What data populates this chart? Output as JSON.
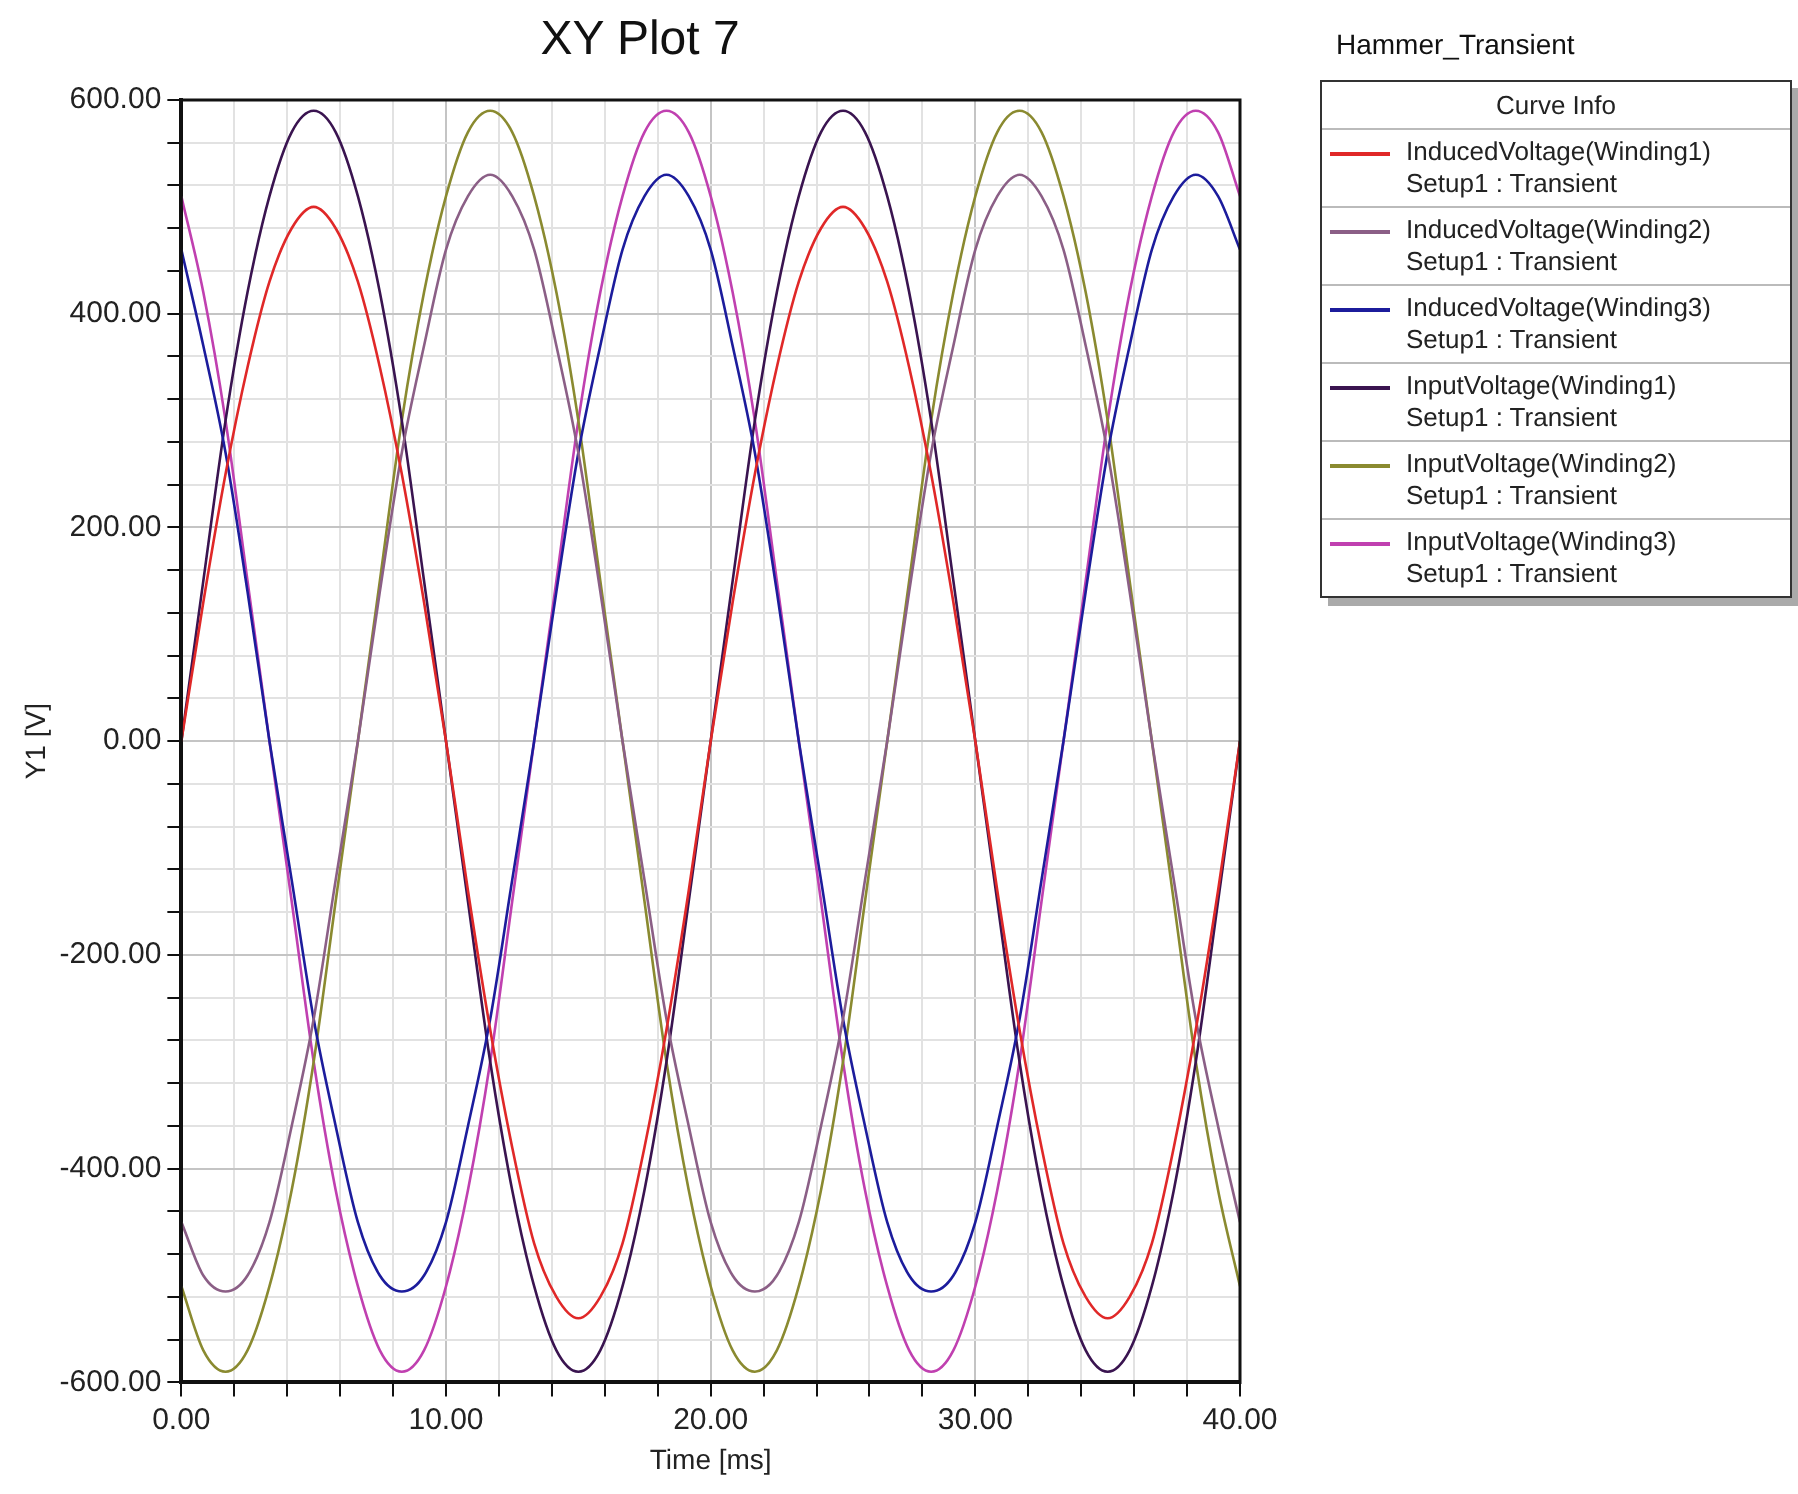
{
  "chart_data": {
    "type": "line",
    "title": "XY Plot 7",
    "subtitle": "Hammer_Transient",
    "xlabel": "Time [ms]",
    "ylabel": "Y1 [V]",
    "legend_title": "Curve Info",
    "legend": "top right",
    "grid": true,
    "marker": "none",
    "line_style": "solid",
    "xlim": [
      0,
      40
    ],
    "ylim": [
      -600,
      600
    ],
    "xticks": [
      {
        "value": 0,
        "label": "0.00"
      },
      {
        "value": 2,
        "label": null
      },
      {
        "value": 4,
        "label": null
      },
      {
        "value": 6,
        "label": null
      },
      {
        "value": 8,
        "label": null
      },
      {
        "value": 10,
        "label": "10.00"
      },
      {
        "value": 12,
        "label": null
      },
      {
        "value": 14,
        "label": null
      },
      {
        "value": 16,
        "label": null
      },
      {
        "value": 18,
        "label": null
      },
      {
        "value": 20,
        "label": "20.00"
      },
      {
        "value": 22,
        "label": null
      },
      {
        "value": 24,
        "label": null
      },
      {
        "value": 26,
        "label": null
      },
      {
        "value": 28,
        "label": null
      },
      {
        "value": 30,
        "label": "30.00"
      },
      {
        "value": 32,
        "label": null
      },
      {
        "value": 34,
        "label": null
      },
      {
        "value": 36,
        "label": null
      },
      {
        "value": 38,
        "label": null
      },
      {
        "value": 40,
        "label": "40.00"
      }
    ],
    "yticks": [
      {
        "value": -600,
        "label": "-600.00"
      },
      {
        "value": -560,
        "label": null
      },
      {
        "value": -520,
        "label": null
      },
      {
        "value": -480,
        "label": null
      },
      {
        "value": -440,
        "label": null
      },
      {
        "value": -400,
        "label": "-400.00"
      },
      {
        "value": -360,
        "label": null
      },
      {
        "value": -320,
        "label": null
      },
      {
        "value": -280,
        "label": null
      },
      {
        "value": -240,
        "label": null
      },
      {
        "value": -200,
        "label": "-200.00"
      },
      {
        "value": -160,
        "label": null
      },
      {
        "value": -120,
        "label": null
      },
      {
        "value": -80,
        "label": null
      },
      {
        "value": -40,
        "label": null
      },
      {
        "value": 0,
        "label": "0.00"
      },
      {
        "value": 40,
        "label": null
      },
      {
        "value": 80,
        "label": null
      },
      {
        "value": 120,
        "label": null
      },
      {
        "value": 160,
        "label": null
      },
      {
        "value": 200,
        "label": "200.00"
      },
      {
        "value": 240,
        "label": null
      },
      {
        "value": 280,
        "label": null
      },
      {
        "value": 320,
        "label": null
      },
      {
        "value": 360,
        "label": null
      },
      {
        "value": 400,
        "label": "400.00"
      },
      {
        "value": 440,
        "label": null
      },
      {
        "value": 480,
        "label": null
      },
      {
        "value": 520,
        "label": null
      },
      {
        "value": 560,
        "label": null
      },
      {
        "value": 600,
        "label": "600.00"
      }
    ],
    "x": [
      0,
      0.83,
      1.67,
      2.5,
      3.33,
      4.17,
      5,
      5.83,
      6.67,
      7.5,
      8.33,
      9.17,
      10,
      10.83,
      11.67,
      12.5,
      13.33,
      14.17,
      15,
      15.83,
      16.67,
      17.5,
      18.33,
      19.17,
      20,
      20.83,
      21.67,
      22.5,
      23.33,
      24.17,
      25,
      25.83,
      26.67,
      27.5,
      28.33,
      29.17,
      30,
      30.83,
      31.67,
      32.5,
      33.33,
      34.17,
      35,
      35.83,
      36.67,
      37.5,
      38.33,
      39.17,
      40
    ],
    "series": [
      {
        "name": "InducedVoltage(Winding1)\nSetup1 : Transient",
        "color": "#e02828",
        "values": [
          0,
          130,
          250,
          350,
          430,
          480,
          500,
          480,
          430,
          350,
          250,
          130,
          0,
          -140,
          -270,
          -380,
          -470,
          -520,
          -540,
          -520,
          -470,
          -380,
          -270,
          -140,
          0,
          130,
          250,
          350,
          430,
          480,
          500,
          480,
          430,
          350,
          250,
          130,
          0,
          -140,
          -270,
          -380,
          -470,
          -520,
          -540,
          -520,
          -470,
          -380,
          -270,
          -140,
          0
        ]
      },
      {
        "name": "InducedVoltage(Winding2)\nSetup1 : Transient",
        "color": "#8b5f86",
        "values": [
          -450,
          -500,
          -515,
          -500,
          -450,
          -360,
          -260,
          -130,
          0,
          140,
          270,
          370,
          460,
          510,
          530,
          510,
          460,
          370,
          270,
          140,
          0,
          -130,
          -260,
          -360,
          -450,
          -500,
          -515,
          -500,
          -450,
          -360,
          -260,
          -130,
          0,
          140,
          270,
          370,
          460,
          510,
          530,
          510,
          460,
          370,
          270,
          140,
          0,
          -130,
          -260,
          -360,
          -450
        ]
      },
      {
        "name": "InducedVoltage(Winding3)\nSetup1 : Transient",
        "color": "#1c1c9c",
        "values": [
          460,
          370,
          270,
          140,
          0,
          -130,
          -260,
          -360,
          -450,
          -500,
          -515,
          -500,
          -450,
          -360,
          -260,
          -130,
          0,
          140,
          270,
          370,
          460,
          510,
          530,
          510,
          460,
          370,
          270,
          140,
          0,
          -130,
          -260,
          -360,
          -450,
          -500,
          -515,
          -500,
          -450,
          -360,
          -260,
          -130,
          0,
          140,
          270,
          370,
          460,
          510,
          530,
          510,
          460
        ]
      },
      {
        "name": "InputVoltage(Winding1)\nSetup1 : Transient",
        "color": "#3a1450",
        "values": [
          0,
          150,
          300,
          420,
          510,
          570,
          590,
          570,
          510,
          420,
          300,
          150,
          0,
          -150,
          -300,
          -420,
          -510,
          -570,
          -590,
          -570,
          -510,
          -420,
          -300,
          -150,
          0,
          150,
          300,
          420,
          510,
          570,
          590,
          570,
          510,
          420,
          300,
          150,
          0,
          -150,
          -300,
          -420,
          -510,
          -570,
          -590,
          -570,
          -510,
          -420,
          -300,
          -150,
          0
        ]
      },
      {
        "name": "InputVoltage(Winding2)\nSetup1 : Transient",
        "color": "#8a8a30",
        "values": [
          -510,
          -570,
          -590,
          -570,
          -510,
          -420,
          -300,
          -150,
          0,
          150,
          300,
          420,
          510,
          570,
          590,
          570,
          510,
          420,
          300,
          150,
          0,
          -150,
          -300,
          -420,
          -510,
          -570,
          -590,
          -570,
          -510,
          -420,
          -300,
          -150,
          0,
          150,
          300,
          420,
          510,
          570,
          590,
          570,
          510,
          420,
          300,
          150,
          0,
          -150,
          -300,
          -420,
          -510
        ]
      },
      {
        "name": "InputVoltage(Winding3)\nSetup1 : Transient",
        "color": "#c040b0",
        "values": [
          510,
          420,
          300,
          150,
          0,
          -150,
          -300,
          -420,
          -510,
          -570,
          -590,
          -570,
          -510,
          -420,
          -300,
          -150,
          0,
          150,
          300,
          420,
          510,
          570,
          590,
          570,
          510,
          420,
          300,
          150,
          0,
          -150,
          -300,
          -420,
          -510,
          -570,
          -590,
          -570,
          -510,
          -420,
          -300,
          -150,
          0,
          150,
          300,
          420,
          510,
          570,
          590,
          570,
          510
        ]
      }
    ]
  }
}
